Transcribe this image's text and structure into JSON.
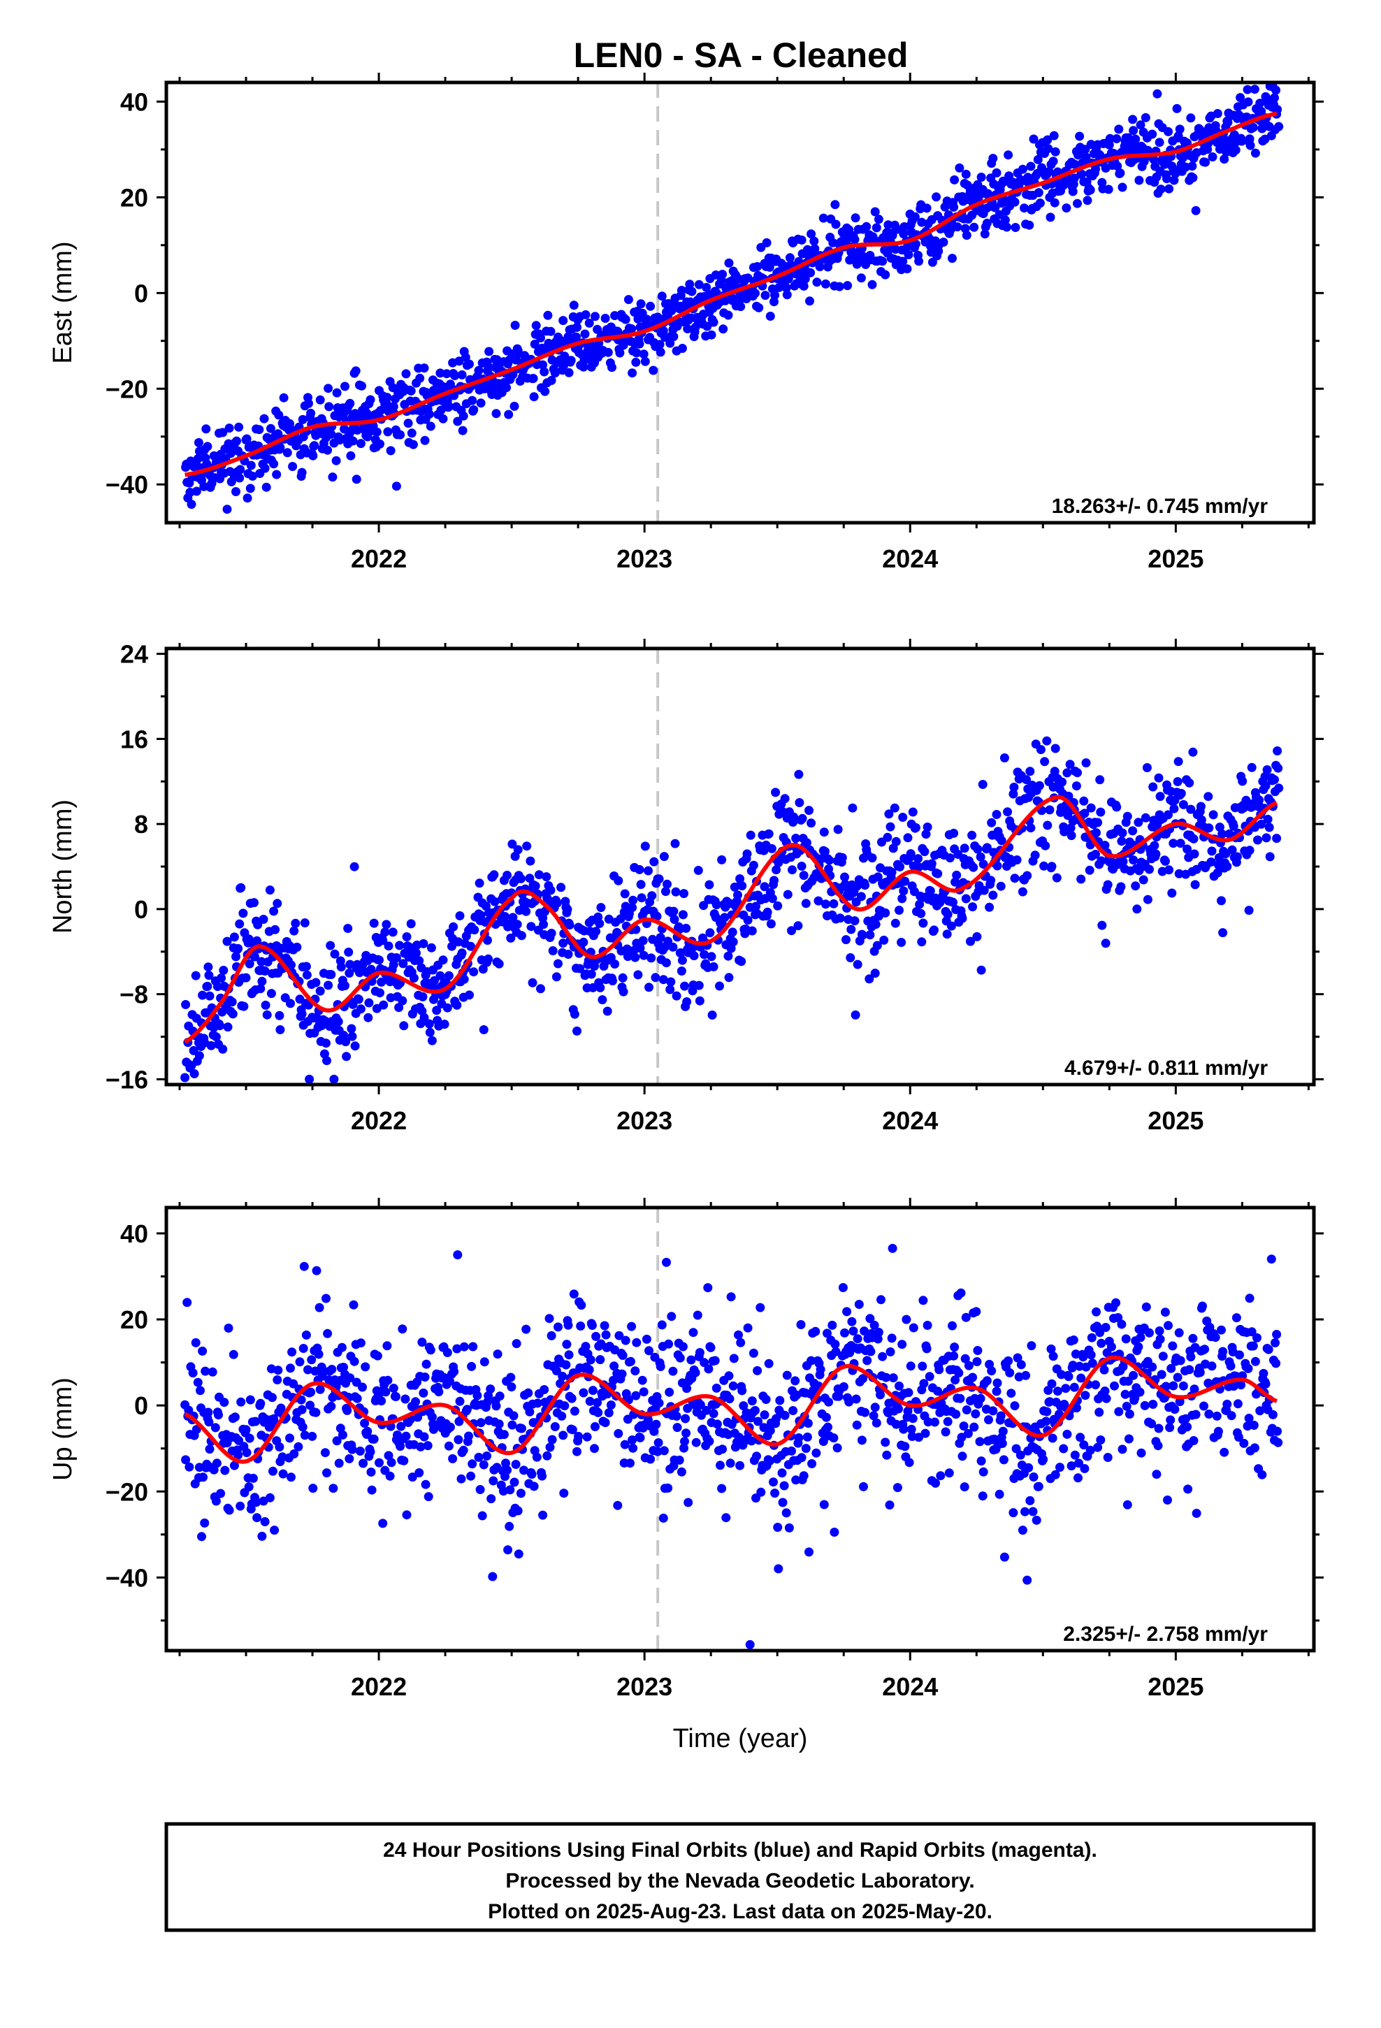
{
  "title": "LEN0  - SA - Cleaned",
  "footer": {
    "lines": [
      "24 Hour Positions Using Final Orbits (blue) and Rapid Orbits (magenta).",
      "Processed by the Nevada Geodetic Laboratory.",
      "Plotted on 2025-Aug-23. Last data on 2025-May-20."
    ]
  },
  "colors": {
    "points": "#0000ff",
    "fit": "#ff0000",
    "event_line": "#c8c8c8",
    "frame": "#000000"
  },
  "chart_data": [
    {
      "type": "scatter",
      "component": "east",
      "ylabel": "East (mm)",
      "xlabel": "",
      "xlim": [
        2021.2,
        2025.52
      ],
      "ylim": [
        -48,
        44
      ],
      "yticks": [
        -40,
        -20,
        0,
        20,
        40
      ],
      "xticks": [
        2022,
        2023,
        2024,
        2025
      ],
      "event_line_x": 2023.05,
      "rate_text": "18.263+/- 0.745 mm/yr",
      "fit": {
        "x": [
          2021.27,
          2021.5,
          2021.75,
          2022.0,
          2022.25,
          2022.5,
          2022.75,
          2023.0,
          2023.25,
          2023.5,
          2023.75,
          2024.0,
          2024.25,
          2024.5,
          2024.75,
          2025.0,
          2025.2,
          2025.38
        ],
        "y": [
          -38,
          -34,
          -28,
          -26.5,
          -21,
          -16,
          -10.5,
          -8,
          -1.5,
          3.5,
          9.5,
          11,
          18.5,
          23,
          28,
          29.5,
          34,
          37.5
        ]
      },
      "noise": 3.5
    },
    {
      "type": "scatter",
      "component": "north",
      "ylabel": "North (mm)",
      "xlabel": "",
      "xlim": [
        2021.2,
        2025.52
      ],
      "ylim": [
        -16.5,
        24.5
      ],
      "yticks": [
        -16,
        -8,
        0,
        8,
        16,
        24
      ],
      "xticks": [
        2022,
        2023,
        2024,
        2025
      ],
      "event_line_x": 2023.05,
      "rate_text": "4.679+/- 0.811 mm/yr",
      "fit": {
        "x": [
          2021.27,
          2021.4,
          2021.55,
          2021.8,
          2022.0,
          2022.25,
          2022.5,
          2022.62,
          2022.8,
          2023.0,
          2023.25,
          2023.55,
          2023.8,
          2024.0,
          2024.2,
          2024.55,
          2024.75,
          2025.0,
          2025.2,
          2025.38
        ],
        "y": [
          -12.5,
          -9,
          -3.5,
          -9.5,
          -6,
          -7.5,
          1,
          0.5,
          -4.5,
          -1,
          -3,
          6,
          0,
          3.5,
          2,
          10.5,
          5,
          8,
          6.5,
          10
        ]
      },
      "noise": 2.8
    },
    {
      "type": "scatter",
      "component": "up",
      "ylabel": "Up (mm)",
      "xlabel": "Time (year)",
      "xlim": [
        2021.2,
        2025.52
      ],
      "ylim": [
        -57,
        46
      ],
      "yticks": [
        -40,
        -20,
        0,
        20,
        40
      ],
      "xticks": [
        2022,
        2023,
        2024,
        2025
      ],
      "event_line_x": 2023.05,
      "rate_text": "2.325+/- 2.758 mm/yr",
      "fit": {
        "x": [
          2021.27,
          2021.5,
          2021.75,
          2022.0,
          2022.25,
          2022.5,
          2022.75,
          2023.0,
          2023.25,
          2023.5,
          2023.75,
          2024.0,
          2024.25,
          2024.5,
          2024.75,
          2025.0,
          2025.25,
          2025.38
        ],
        "y": [
          -2,
          -13,
          5,
          -4,
          0,
          -11,
          7,
          -2,
          2,
          -9,
          9,
          0,
          4,
          -7,
          11,
          2,
          6,
          1
        ]
      },
      "noise": 10
    }
  ]
}
